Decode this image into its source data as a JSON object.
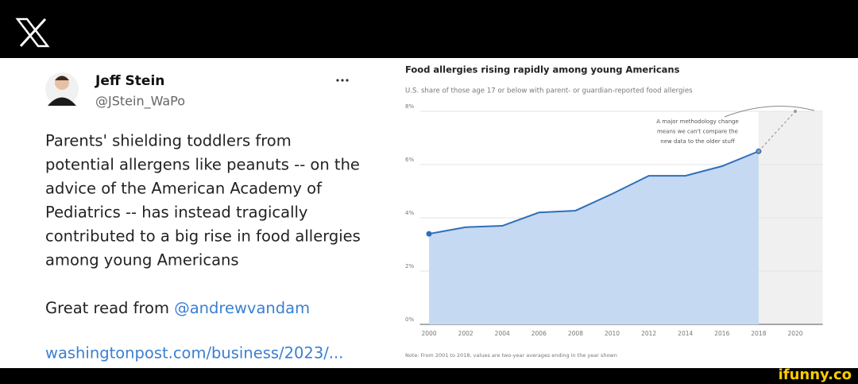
{
  "tweet": {
    "author": "Jeff Stein",
    "handle": "@JStein_WaPo",
    "body_lines": [
      "Parents' shielding toddlers from",
      "potential allergens like peanuts -- on the",
      "advice of the American Academy of",
      "Pediatrics -- has instead tragically",
      "contributed to a big rise in food allergies",
      "among young Americans"
    ],
    "read_prefix": "Great read from",
    "mention": "@andrewvandam",
    "link": "washingtonpost.com/business/2023/..."
  },
  "chart_data": {
    "type": "line",
    "title": "Food allergies rising rapidly among young Americans",
    "subtitle": "U.S. share of those age 17 or below with parent- or guardian-reported food allergies",
    "annotation_lines": [
      "A major methodology change",
      "means we can't compare the",
      "new data to the older stuff"
    ],
    "note": "Note: From 2001 to 2018, values are two-year averages ending in the year shown",
    "x": [
      2000,
      2002,
      2004,
      2006,
      2008,
      2010,
      2012,
      2014,
      2016,
      2018,
      2020
    ],
    "series": [
      {
        "color": "#2f6fba",
        "fill": "#c6d9f3",
        "values": [
          3.4,
          3.65,
          3.7,
          4.2,
          4.27,
          4.9,
          5.58,
          5.58,
          5.94,
          6.5,
          null
        ]
      },
      {
        "color": "#9a9a9a",
        "dashed": true,
        "values": [
          null,
          null,
          null,
          null,
          null,
          null,
          null,
          null,
          null,
          6.5,
          8.0
        ]
      }
    ],
    "xlim": [
      1999.5,
      2021.5
    ],
    "xticks": [
      2000,
      2002,
      2004,
      2006,
      2008,
      2010,
      2012,
      2014,
      2016,
      2018,
      2020
    ],
    "ylim": [
      0,
      8
    ],
    "yticks": [
      {
        "value": 0,
        "label": "0%"
      },
      {
        "value": 2,
        "label": "2%"
      },
      {
        "value": 4,
        "label": "4%"
      },
      {
        "value": 6,
        "label": "6%"
      },
      {
        "value": 8,
        "label": "8%"
      }
    ],
    "grid": true
  },
  "watermark": "ifunny.co"
}
